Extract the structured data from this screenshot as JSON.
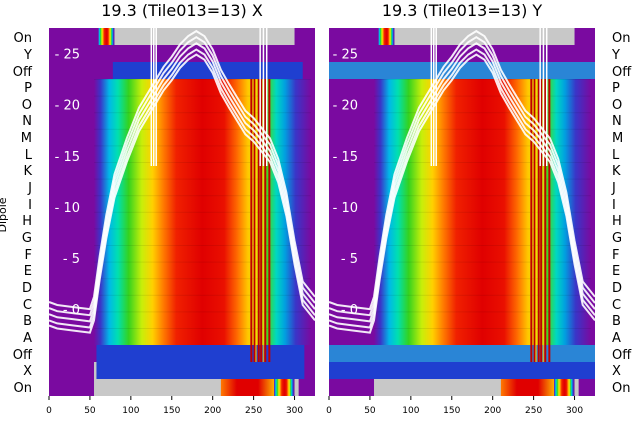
{
  "chart_data": [
    {
      "type": "heatmap",
      "title": "19.3 (Tile013=13) X",
      "ylabel": "Dipole",
      "row_labels": [
        "On",
        "Y",
        "Off",
        "P",
        "O",
        "N",
        "M",
        "L",
        "K",
        "J",
        "I",
        "H",
        "G",
        "F",
        "E",
        "D",
        "C",
        "B",
        "A",
        "Off",
        "X",
        "On"
      ],
      "x_ticks": [
        0,
        50,
        100,
        150,
        200,
        250,
        300
      ],
      "xlim": [
        0,
        325
      ],
      "y_ticks": [
        0,
        5,
        10,
        15,
        20,
        25
      ],
      "ylim": [
        -8.5,
        27.5
      ],
      "overlay_series": [
        {
          "x": [
            0,
            10,
            30,
            50,
            55,
            62,
            70,
            80,
            95,
            110,
            125,
            140,
            150,
            160,
            170,
            180,
            190,
            200,
            210,
            220,
            230,
            240,
            250,
            260,
            270,
            280,
            290,
            300,
            310,
            325
          ],
          "y": [
            -0.5,
            -0.8,
            -1,
            -1.2,
            0,
            4,
            8,
            12,
            15.5,
            18.5,
            20.5,
            22.5,
            23.5,
            24.7,
            25.5,
            26,
            25.5,
            24.2,
            22.2,
            20.8,
            19.5,
            18.2,
            17.5,
            16.5,
            15.5,
            13.5,
            10.2,
            5.5,
            1.5,
            0
          ]
        }
      ]
    },
    {
      "type": "heatmap",
      "title": "19.3 (Tile013=13) Y",
      "row_labels": [
        "On",
        "Y",
        "Off",
        "P",
        "O",
        "N",
        "M",
        "L",
        "K",
        "J",
        "I",
        "H",
        "G",
        "F",
        "E",
        "D",
        "C",
        "B",
        "A",
        "Off",
        "X",
        "On"
      ],
      "x_ticks": [
        0,
        50,
        100,
        150,
        200,
        250,
        300
      ],
      "xlim": [
        0,
        325
      ],
      "y_ticks": [
        0,
        5,
        10,
        15,
        20,
        25
      ],
      "ylim": [
        -8.5,
        27.5
      ],
      "overlay_series": [
        {
          "x": [
            0,
            10,
            30,
            50,
            55,
            62,
            70,
            80,
            95,
            110,
            125,
            140,
            150,
            160,
            170,
            180,
            190,
            200,
            210,
            220,
            230,
            240,
            250,
            260,
            270,
            280,
            290,
            300,
            310,
            325
          ],
          "y": [
            -0.5,
            -0.8,
            -1,
            -1.2,
            0,
            4,
            8,
            12,
            15.5,
            18.5,
            20.5,
            22.5,
            23.5,
            24.7,
            25.5,
            26,
            25.5,
            24.2,
            22.2,
            20.8,
            19.5,
            18.2,
            17.5,
            16.5,
            15.5,
            13.5,
            10.2,
            5.5,
            1.5,
            0
          ]
        }
      ]
    }
  ],
  "colors": {
    "purple": "#7a0aa0",
    "blue": "#1f3fd0",
    "light_blue": "#2a85d6",
    "cyan": "#00e0d0",
    "green": "#25d025",
    "yellow": "#f7f20a",
    "orange": "#ff8a00",
    "red": "#e60000",
    "gray": "#c8c8c8",
    "curve": "#ffffff"
  }
}
